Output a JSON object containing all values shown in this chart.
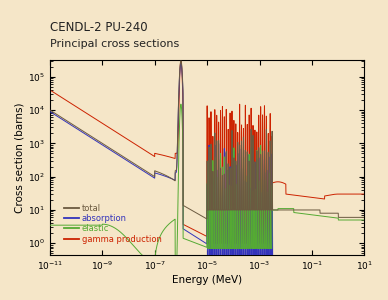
{
  "title_line1": "CENDL-2 PU-240",
  "title_line2": "Principal cross sections",
  "xlabel": "Energy (MeV)",
  "ylabel": "Cross section (barns)",
  "background_color": "#f5e6c8",
  "legend_entries": [
    "total",
    "absorption",
    "elastic",
    "gamma production"
  ],
  "legend_colors": [
    "#6b5a40",
    "#3333bb",
    "#55aa33",
    "#cc2200"
  ],
  "line_colors": {
    "total": "#6b5a40",
    "absorption": "#3333bb",
    "elastic": "#55aa33",
    "gamma_production": "#cc2200"
  }
}
